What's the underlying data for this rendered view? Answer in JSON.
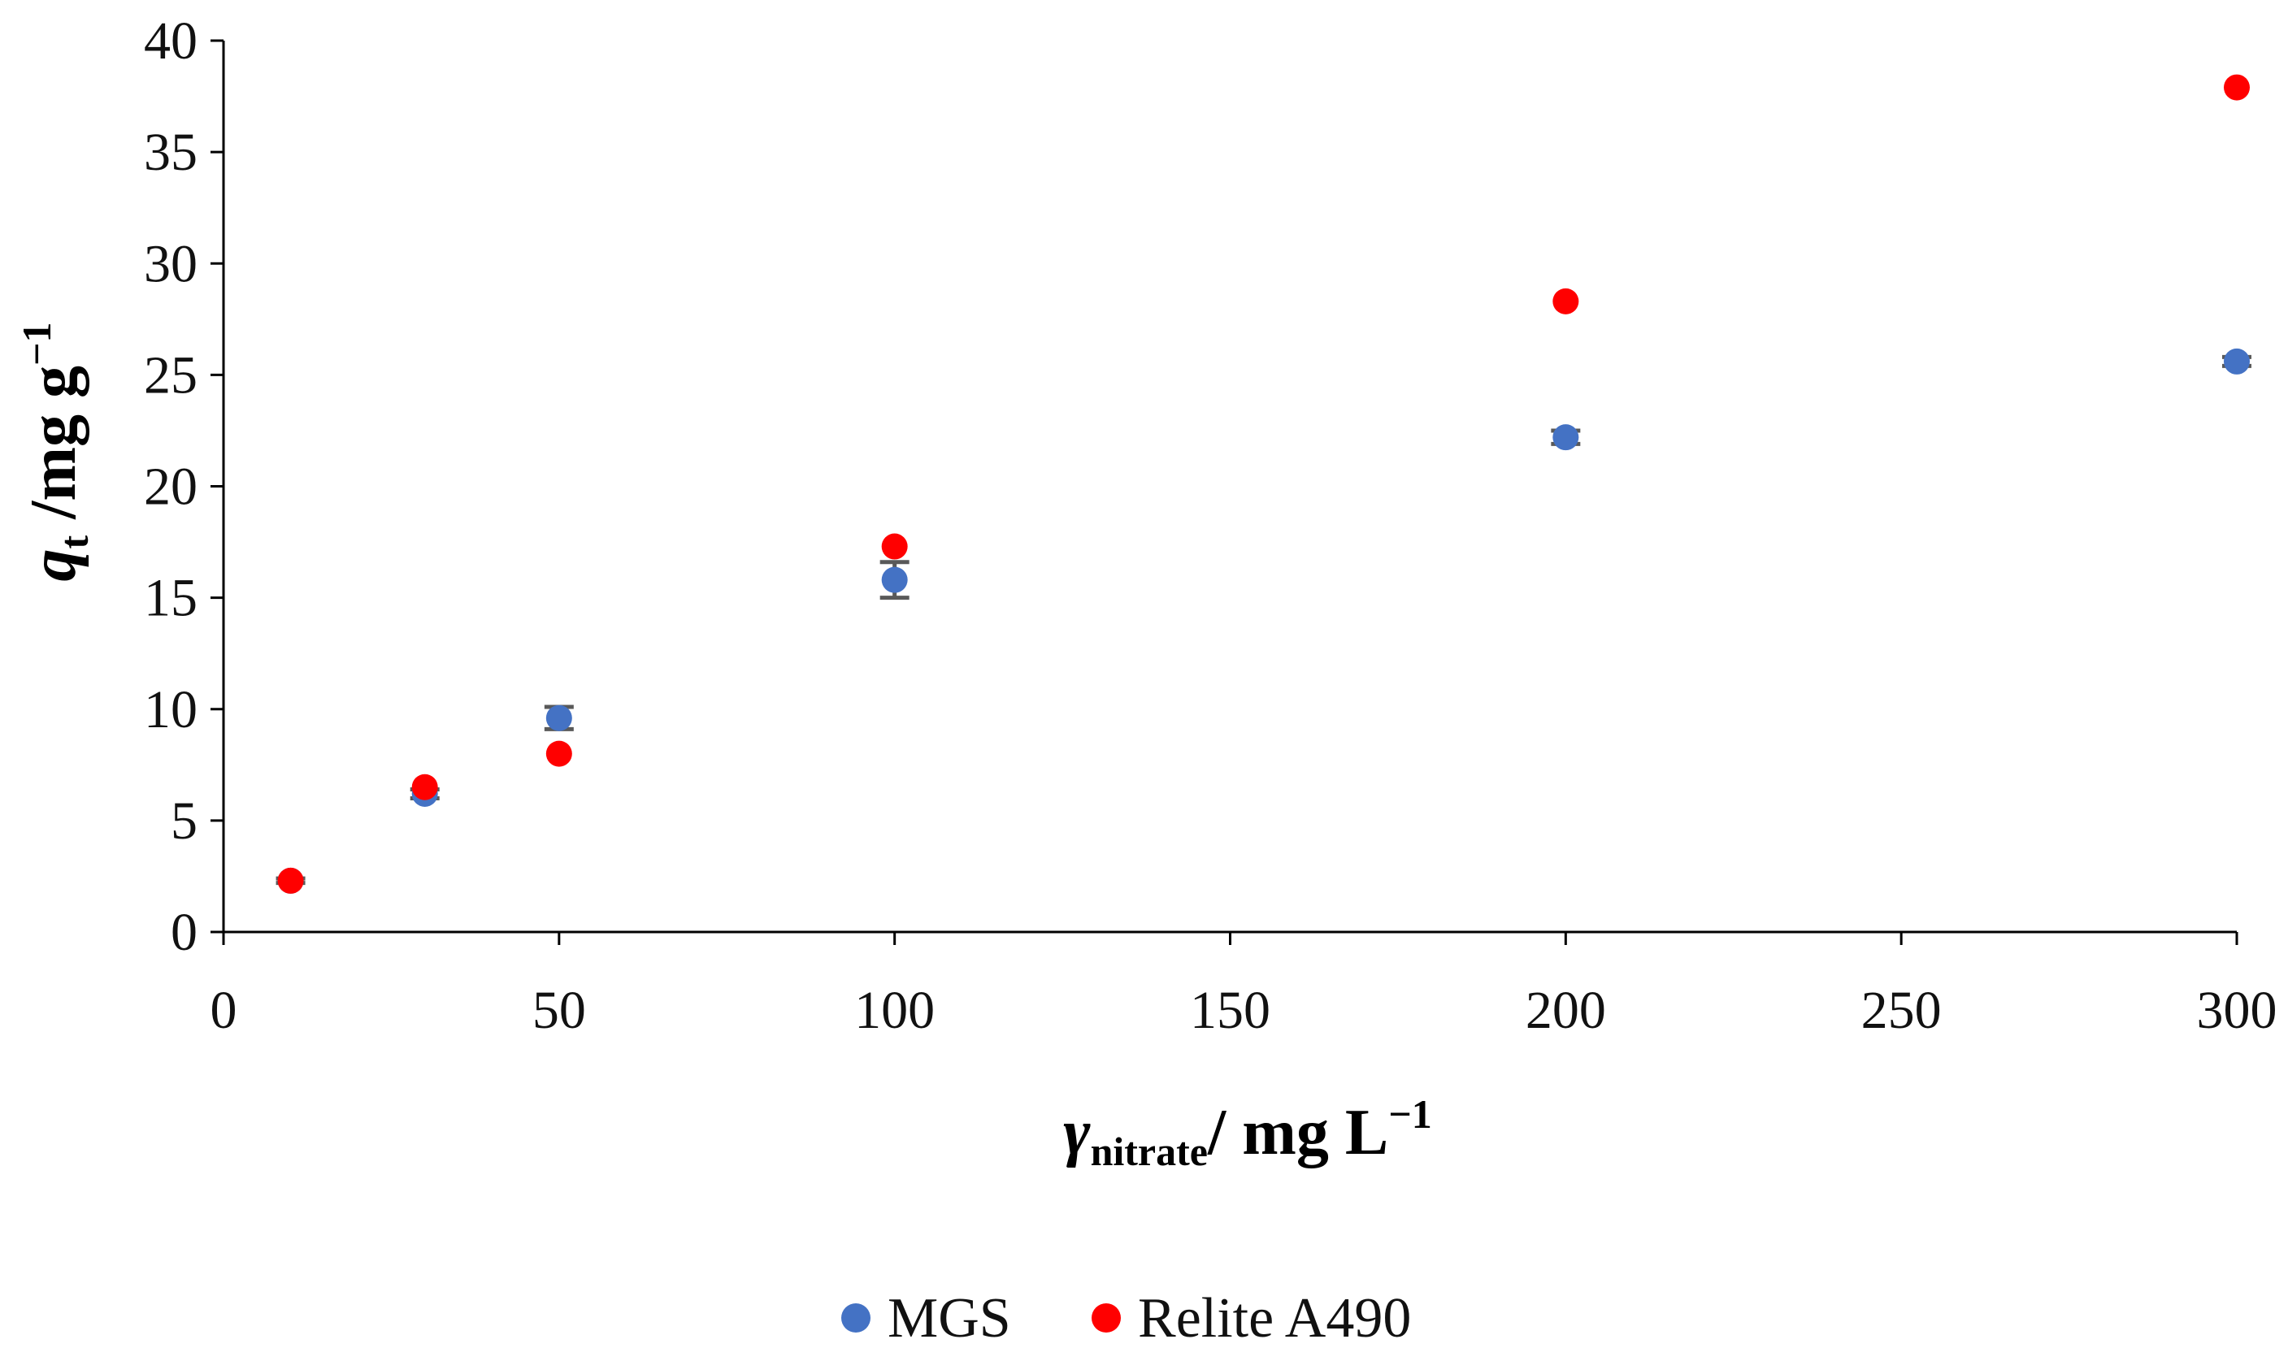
{
  "chart_data": {
    "type": "scatter",
    "title": "",
    "xlabel": {
      "symbol": "γ",
      "subscript": "nitrate",
      "unit": "/ mg L",
      "superscript": "−1"
    },
    "ylabel": {
      "symbol": "q",
      "subscript": "t",
      "unit": " /mg g",
      "superscript": "−1"
    },
    "xlim": [
      0,
      300
    ],
    "ylim": [
      0,
      40
    ],
    "xticks": [
      0,
      50,
      100,
      150,
      200,
      250,
      300
    ],
    "yticks": [
      0,
      5,
      10,
      15,
      20,
      25,
      30,
      35,
      40
    ],
    "xtick_labels": [
      "0",
      "50",
      "100",
      "150",
      "200",
      "250",
      "300"
    ],
    "ytick_labels": [
      "0",
      "5",
      "10",
      "15",
      "20",
      "25",
      "30",
      "35",
      "40"
    ],
    "grid": false,
    "legend_position": "bottom-center",
    "series": [
      {
        "name": "MGS",
        "color": "#4472C4",
        "x": [
          10,
          30,
          50,
          100,
          200,
          300
        ],
        "y": [
          2.3,
          6.2,
          9.6,
          15.8,
          22.2,
          25.6
        ],
        "error": [
          0.1,
          0.2,
          0.5,
          0.8,
          0.3,
          0.2
        ]
      },
      {
        "name": "Relite A490",
        "color": "#FF0000",
        "x": [
          10,
          30,
          50,
          100,
          200,
          300
        ],
        "y": [
          2.3,
          6.5,
          8.0,
          17.3,
          28.3,
          37.9
        ],
        "error": [
          0,
          0,
          0,
          0,
          0,
          0
        ]
      }
    ]
  }
}
